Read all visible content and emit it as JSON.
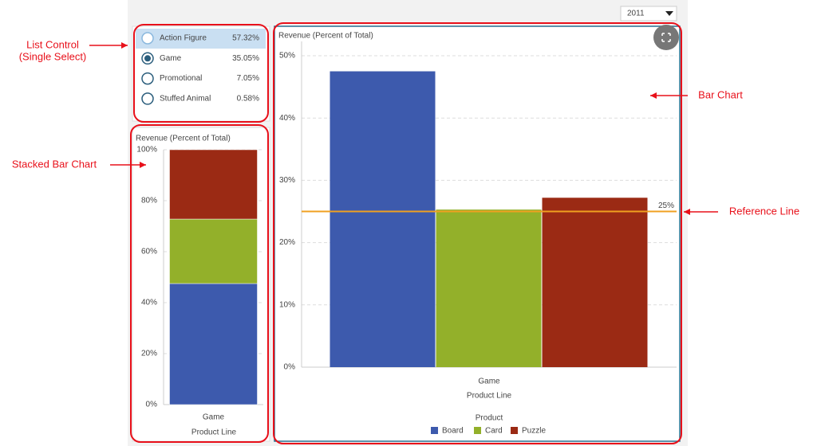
{
  "dropdown": {
    "value": "2011"
  },
  "list_control": {
    "selected": 1,
    "highlighted": 0,
    "items": [
      {
        "label": "Action Figure",
        "percent": "57.32%"
      },
      {
        "label": "Game",
        "percent": "35.05%"
      },
      {
        "label": "Promotional",
        "percent": "7.05%"
      },
      {
        "label": "Stuffed Animal",
        "percent": "0.58%"
      }
    ]
  },
  "annotations": [
    {
      "lines": [
        "List Control",
        "(Single Select)"
      ]
    },
    {
      "lines": [
        "Stacked Bar Chart"
      ]
    },
    {
      "lines": [
        "Bar Chart"
      ]
    },
    {
      "lines": [
        "Reference Line"
      ]
    }
  ],
  "chart_data": [
    {
      "type": "stacked_bar",
      "title": "Revenue (Percent of Total)",
      "x_label": "Product Line",
      "categories": [
        "Game"
      ],
      "series": [
        {
          "color": "#3d5aad",
          "values": [
            47.5
          ]
        },
        {
          "color": "#93b02a",
          "values": [
            25.3
          ]
        },
        {
          "color": "#9b2a14",
          "values": [
            27.2
          ]
        }
      ],
      "ylim": [
        0,
        100
      ],
      "yticks": [
        {
          "value": 0,
          "label": "0%"
        },
        {
          "value": 20,
          "label": "20%"
        },
        {
          "value": 40,
          "label": "40%"
        },
        {
          "value": 60,
          "label": "60%"
        },
        {
          "value": 80,
          "label": "80%"
        },
        {
          "value": 100,
          "label": "100%"
        }
      ],
      "grid": true
    },
    {
      "type": "bar",
      "title": "Revenue (Percent of Total)",
      "x_label": "Product Line",
      "legend_title": "Product",
      "categories": [
        "Game"
      ],
      "series": [
        {
          "name": "Board",
          "color": "#3d5aad",
          "values": [
            47.5
          ]
        },
        {
          "name": "Card",
          "color": "#93b02a",
          "values": [
            25.3
          ]
        },
        {
          "name": "Puzzle",
          "color": "#9b2a14",
          "values": [
            27.2
          ]
        }
      ],
      "ylim": [
        0,
        52.3
      ],
      "yticks": [
        {
          "value": 0,
          "label": "0%"
        },
        {
          "value": 10,
          "label": "10%"
        },
        {
          "value": 20,
          "label": "20%"
        },
        {
          "value": 30,
          "label": "30%"
        },
        {
          "value": 40,
          "label": "40%"
        },
        {
          "value": 50,
          "label": "50%"
        }
      ],
      "reference_line": {
        "value": 25,
        "label": "25%",
        "color": "#f0a020"
      },
      "grid": true
    }
  ]
}
